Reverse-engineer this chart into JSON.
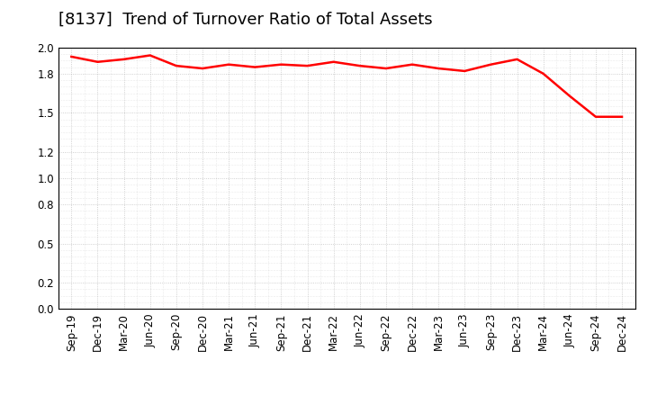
{
  "title": "[8137]  Trend of Turnover Ratio of Total Assets",
  "line_color": "#ff0000",
  "line_width": 1.8,
  "background_color": "#ffffff",
  "grid_color": "#999999",
  "ylim": [
    0.0,
    2.0
  ],
  "yticks": [
    0.0,
    0.2,
    0.5,
    0.8,
    1.0,
    1.2,
    1.5,
    1.8,
    2.0
  ],
  "labels": [
    "Sep-19",
    "Dec-19",
    "Mar-20",
    "Jun-20",
    "Sep-20",
    "Dec-20",
    "Mar-21",
    "Jun-21",
    "Sep-21",
    "Dec-21",
    "Mar-22",
    "Jun-22",
    "Sep-22",
    "Dec-22",
    "Mar-23",
    "Jun-23",
    "Sep-23",
    "Dec-23",
    "Mar-24",
    "Jun-24",
    "Sep-24",
    "Dec-24"
  ],
  "values": [
    1.93,
    1.89,
    1.91,
    1.94,
    1.86,
    1.84,
    1.87,
    1.85,
    1.87,
    1.86,
    1.89,
    1.86,
    1.84,
    1.87,
    1.84,
    1.82,
    1.87,
    1.91,
    1.8,
    1.63,
    1.47,
    1.47
  ],
  "title_fontsize": 13,
  "tick_fontsize": 8.5
}
